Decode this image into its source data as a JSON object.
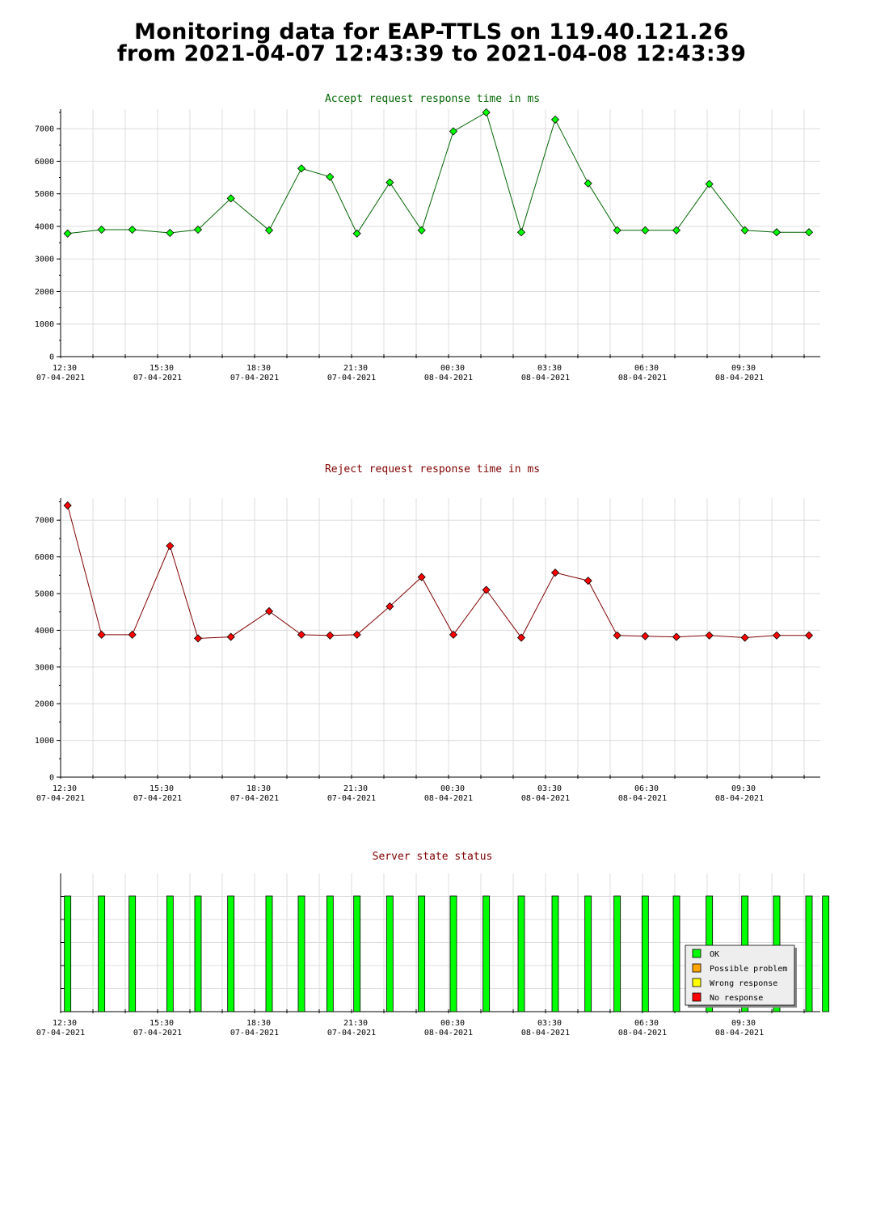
{
  "page": {
    "title_line1": "Monitoring data for EAP-TTLS on 119.40.121.26",
    "title_line2": "from 2021-04-07 12:43:39 to 2021-04-08 12:43:39"
  },
  "x_ticks": [
    {
      "time": "12:30",
      "date": "07-04-2021"
    },
    {
      "time": "15:30",
      "date": "07-04-2021"
    },
    {
      "time": "18:30",
      "date": "07-04-2021"
    },
    {
      "time": "21:30",
      "date": "07-04-2021"
    },
    {
      "time": "00:30",
      "date": "08-04-2021"
    },
    {
      "time": "03:30",
      "date": "08-04-2021"
    },
    {
      "time": "06:30",
      "date": "08-04-2021"
    },
    {
      "time": "09:30",
      "date": "08-04-2021"
    }
  ],
  "chart_data": [
    {
      "type": "line",
      "title": "Accept request response time in ms",
      "title_color": "#006400",
      "line_color": "#006400",
      "marker_color": "#00ff00",
      "x_axis": "time",
      "x": [
        "2021-04-07 12:43",
        "2021-04-07 13:46",
        "2021-04-07 14:43",
        "2021-04-07 15:53",
        "2021-04-07 16:45",
        "2021-04-07 17:46",
        "2021-04-07 18:57",
        "2021-04-07 19:57",
        "2021-04-07 20:50",
        "2021-04-07 21:40",
        "2021-04-07 22:41",
        "2021-04-07 23:40",
        "2021-04-08 00:39",
        "2021-04-08 01:40",
        "2021-04-08 02:45",
        "2021-04-08 03:48",
        "2021-04-08 04:49",
        "2021-04-08 05:43",
        "2021-04-08 06:35",
        "2021-04-08 07:33",
        "2021-04-08 08:34",
        "2021-04-08 09:40",
        "2021-04-08 10:39",
        "2021-04-08 11:39"
      ],
      "values": [
        3780,
        3900,
        3900,
        3800,
        3900,
        4860,
        3880,
        5780,
        5520,
        3780,
        5350,
        3880,
        6920,
        7500,
        3820,
        7280,
        5320,
        3880,
        3880,
        3880,
        5300,
        3880,
        3820,
        3820
      ],
      "ylim": [
        0,
        7600
      ],
      "yticks": [
        0,
        1000,
        2000,
        3000,
        4000,
        5000,
        6000,
        7000
      ],
      "grid": true
    },
    {
      "type": "line",
      "title": "Reject request response time in ms",
      "title_color": "#800000",
      "line_color": "#800000",
      "marker_color": "#ff0000",
      "x_axis": "time",
      "x": [
        "2021-04-07 12:43",
        "2021-04-07 13:46",
        "2021-04-07 14:43",
        "2021-04-07 15:53",
        "2021-04-07 16:45",
        "2021-04-07 17:46",
        "2021-04-07 18:57",
        "2021-04-07 19:57",
        "2021-04-07 20:50",
        "2021-04-07 21:40",
        "2021-04-07 22:41",
        "2021-04-07 23:40",
        "2021-04-08 00:39",
        "2021-04-08 01:40",
        "2021-04-08 02:45",
        "2021-04-08 03:48",
        "2021-04-08 04:49",
        "2021-04-08 05:43",
        "2021-04-08 06:35",
        "2021-04-08 07:33",
        "2021-04-08 08:34",
        "2021-04-08 09:40",
        "2021-04-08 10:39",
        "2021-04-08 11:39"
      ],
      "values": [
        7400,
        3880,
        3880,
        6300,
        3780,
        3820,
        4520,
        3880,
        3860,
        3880,
        4650,
        5450,
        3880,
        5100,
        3800,
        5570,
        5350,
        3860,
        3840,
        3820,
        3860,
        3800,
        3860,
        3860
      ],
      "ylim": [
        0,
        7600
      ],
      "yticks": [
        0,
        1000,
        2000,
        3000,
        4000,
        5000,
        6000,
        7000
      ],
      "grid": true
    },
    {
      "type": "bar",
      "title": "Server state status",
      "title_color": "#800000",
      "x_axis": "time",
      "x": [
        "2021-04-07 12:43",
        "2021-04-07 13:46",
        "2021-04-07 14:43",
        "2021-04-07 15:53",
        "2021-04-07 16:45",
        "2021-04-07 17:46",
        "2021-04-07 18:57",
        "2021-04-07 19:57",
        "2021-04-07 20:50",
        "2021-04-07 21:40",
        "2021-04-07 22:41",
        "2021-04-07 23:40",
        "2021-04-08 00:39",
        "2021-04-08 01:40",
        "2021-04-08 02:45",
        "2021-04-08 03:48",
        "2021-04-08 04:49",
        "2021-04-08 05:43",
        "2021-04-08 06:35",
        "2021-04-08 07:33",
        "2021-04-08 08:34",
        "2021-04-08 09:40",
        "2021-04-08 10:39",
        "2021-04-08 11:39",
        "2021-04-08 12:10"
      ],
      "status": [
        "OK",
        "OK",
        "OK",
        "OK",
        "OK",
        "OK",
        "OK",
        "OK",
        "OK",
        "OK",
        "OK",
        "OK",
        "OK",
        "OK",
        "OK",
        "OK",
        "OK",
        "OK",
        "OK",
        "OK",
        "OK",
        "OK",
        "OK",
        "OK",
        "OK"
      ],
      "legend": [
        {
          "label": "OK",
          "color": "#00ff00"
        },
        {
          "label": "Possible problem",
          "color": "#ffa500"
        },
        {
          "label": "Wrong response",
          "color": "#ffff00"
        },
        {
          "label": "No response",
          "color": "#ff0000"
        }
      ],
      "legend_position": "bottom-right",
      "grid": true
    }
  ]
}
